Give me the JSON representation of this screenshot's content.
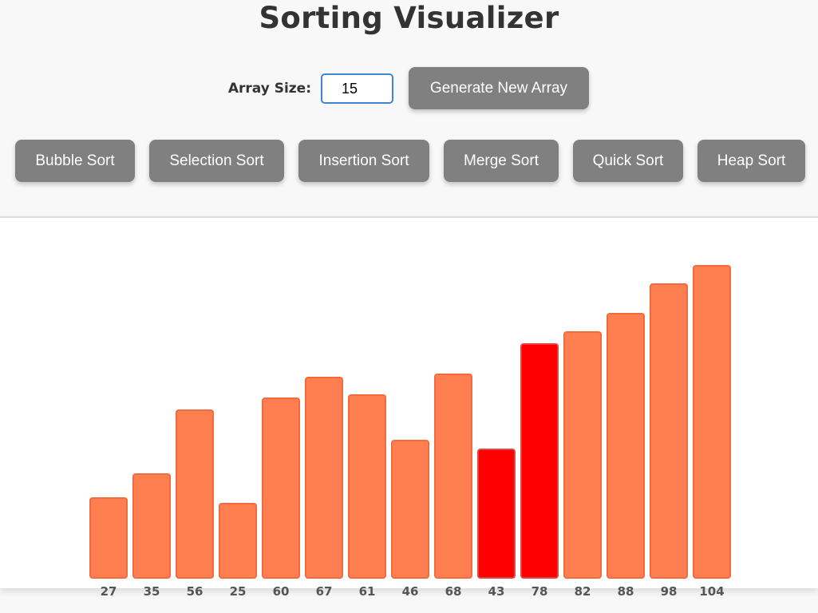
{
  "header": {
    "title": "Sorting Visualizer"
  },
  "controls": {
    "size_label": "Array Size:",
    "size_value": "15",
    "generate_label": "Generate New Array"
  },
  "algorithms": [
    {
      "key": "bubble",
      "label": "Bubble Sort"
    },
    {
      "key": "selection",
      "label": "Selection Sort"
    },
    {
      "key": "insertion",
      "label": "Insertion Sort"
    },
    {
      "key": "merge",
      "label": "Merge Sort"
    },
    {
      "key": "quick",
      "label": "Quick Sort"
    },
    {
      "key": "heap",
      "label": "Heap Sort"
    }
  ],
  "colors": {
    "bar": "#ff7f50",
    "bar_active": "#ff0000",
    "button": "#808080"
  },
  "chart_data": {
    "type": "bar",
    "values": [
      27,
      35,
      56,
      25,
      60,
      67,
      61,
      46,
      68,
      43,
      78,
      82,
      88,
      98,
      104
    ],
    "categories": [
      "27",
      "35",
      "56",
      "25",
      "60",
      "67",
      "61",
      "46",
      "68",
      "43",
      "78",
      "82",
      "88",
      "98",
      "104"
    ],
    "highlighted_indices": [
      9,
      10
    ],
    "ylim": [
      0,
      104
    ]
  }
}
